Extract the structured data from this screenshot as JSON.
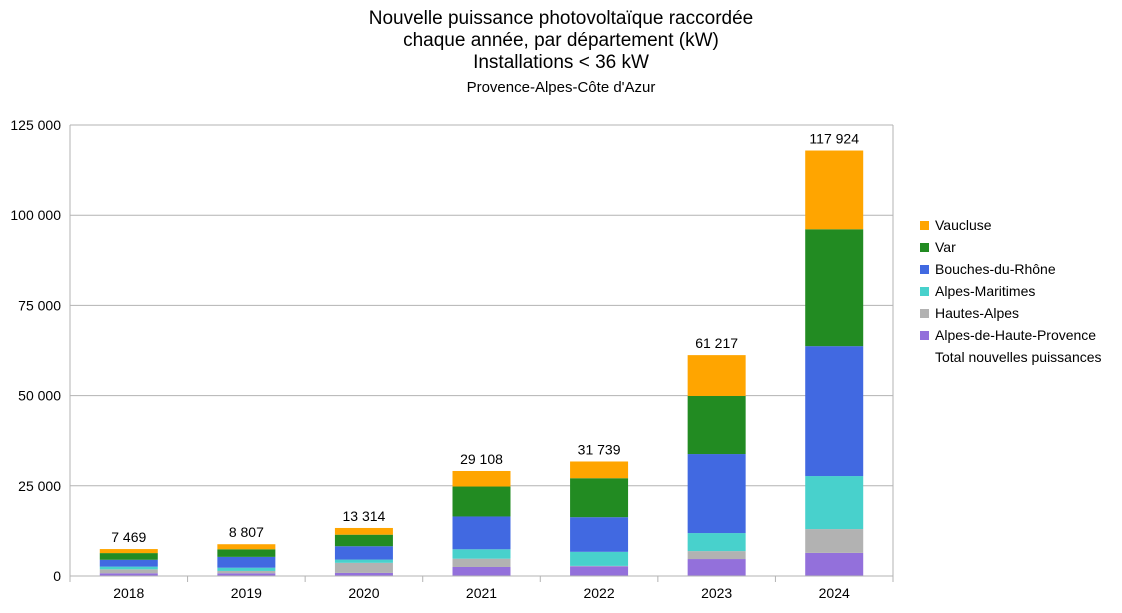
{
  "chart_data": {
    "type": "bar",
    "stacked": true,
    "title_lines": [
      "Nouvelle puissance photovoltaïque raccordée",
      "chaque année, par département (kW)",
      "Installations < 36 kW"
    ],
    "subtitle": "Provence-Alpes-Côte d'Azur",
    "categories": [
      "2018",
      "2019",
      "2020",
      "2021",
      "2022",
      "2023",
      "2024"
    ],
    "ylim": [
      0,
      125000
    ],
    "yticks": [
      0,
      25000,
      50000,
      75000,
      100000,
      125000
    ],
    "ytick_labels": [
      "0",
      "25 000",
      "50 000",
      "75 000",
      "100 000",
      "125 000"
    ],
    "grid": true,
    "legend_position": "right",
    "series": [
      {
        "name": "Alpes-de-Haute-Provence",
        "color": "#9370db",
        "values": [
          750,
          750,
          850,
          2500,
          2700,
          4700,
          6400
        ]
      },
      {
        "name": "Hautes-Alpes",
        "color": "#b2b2b2",
        "values": [
          1100,
          650,
          2800,
          2300,
          100,
          2200,
          6600
        ]
      },
      {
        "name": "Alpes-Maritimes",
        "color": "#48d1cc",
        "values": [
          750,
          900,
          900,
          2600,
          3900,
          5000,
          14700
        ]
      },
      {
        "name": "Bouches-du-Rhône",
        "color": "#4169e1",
        "values": [
          1900,
          3000,
          3700,
          9100,
          9600,
          21900,
          36000
        ]
      },
      {
        "name": "Var",
        "color": "#228b22",
        "values": [
          1850,
          2100,
          3200,
          8300,
          10800,
          16100,
          32400
        ]
      },
      {
        "name": "Vaucluse",
        "color": "#ffa500",
        "values": [
          1119,
          1407,
          1864,
          4308,
          4639,
          11317,
          21824
        ]
      }
    ],
    "totals": {
      "name": "Total nouvelles puissances",
      "values": [
        7469,
        8807,
        13314,
        29108,
        31739,
        61217,
        117924
      ],
      "labels": [
        "7 469",
        "8 807",
        "13 314",
        "29 108",
        "31 739",
        "61 217",
        "117 924"
      ]
    }
  }
}
